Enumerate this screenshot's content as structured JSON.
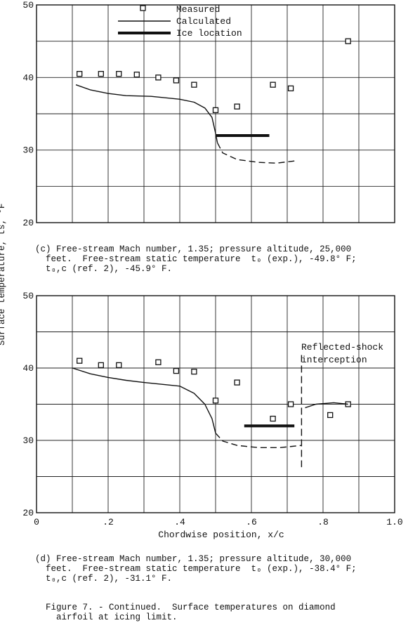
{
  "chart_data": [
    {
      "type": "line",
      "panel": "c",
      "ylabel": "Surface temperature, t",
      "ylabel_sub": "s",
      "ylabel_unit": "°F",
      "xlim": [
        0,
        1.0
      ],
      "ylim": [
        20,
        50
      ],
      "y_ticks": [
        "20",
        "30",
        "40",
        "50"
      ],
      "grid": true,
      "legend": {
        "position": "top-center",
        "entries": [
          "Measured",
          "Calculated",
          "Ice location"
        ]
      },
      "series": [
        {
          "name": "Measured",
          "style": "square-markers",
          "points": [
            [
              0.12,
              40.5
            ],
            [
              0.18,
              40.5
            ],
            [
              0.23,
              40.5
            ],
            [
              0.28,
              40.4
            ],
            [
              0.34,
              40.0
            ],
            [
              0.39,
              39.6
            ],
            [
              0.44,
              39.0
            ],
            [
              0.5,
              35.5
            ],
            [
              0.56,
              36.0
            ],
            [
              0.66,
              39.0
            ],
            [
              0.71,
              38.5
            ],
            [
              0.87,
              45.0
            ]
          ]
        },
        {
          "name": "Calculated",
          "style": "solid",
          "points": [
            [
              0.11,
              39.0
            ],
            [
              0.15,
              38.3
            ],
            [
              0.2,
              37.8
            ],
            [
              0.25,
              37.5
            ],
            [
              0.32,
              37.4
            ],
            [
              0.4,
              37.0
            ],
            [
              0.44,
              36.6
            ],
            [
              0.47,
              35.8
            ],
            [
              0.49,
              34.5
            ],
            [
              0.5,
              32.3
            ],
            [
              0.505,
              31.0
            ]
          ]
        },
        {
          "name": "Calculated (beyond shock)",
          "style": "dashed",
          "points": [
            [
              0.505,
              31.0
            ],
            [
              0.52,
              29.6
            ],
            [
              0.56,
              28.7
            ],
            [
              0.62,
              28.3
            ],
            [
              0.67,
              28.2
            ],
            [
              0.72,
              28.5
            ]
          ]
        },
        {
          "name": "Ice location",
          "style": "thick",
          "points": [
            [
              0.5,
              32.0
            ],
            [
              0.65,
              32.0
            ]
          ]
        }
      ]
    },
    {
      "type": "line",
      "panel": "d",
      "xlabel": "Chordwise position, x/c",
      "xlim": [
        0,
        1.0
      ],
      "ylim": [
        20,
        50
      ],
      "x_ticks": [
        "0",
        ".2",
        ".4",
        ".6",
        ".8",
        "1.0"
      ],
      "y_ticks": [
        "20",
        "30",
        "40",
        "50"
      ],
      "grid": true,
      "annotation": "Reflected-shock\ninterception",
      "shock_x": 0.74,
      "series": [
        {
          "name": "Measured",
          "style": "square-markers",
          "points": [
            [
              0.12,
              41.0
            ],
            [
              0.18,
              40.4
            ],
            [
              0.23,
              40.4
            ],
            [
              0.34,
              40.8
            ],
            [
              0.39,
              39.6
            ],
            [
              0.44,
              39.5
            ],
            [
              0.5,
              35.5
            ],
            [
              0.56,
              38.0
            ],
            [
              0.66,
              33.0
            ],
            [
              0.71,
              35.0
            ],
            [
              0.82,
              33.5
            ],
            [
              0.87,
              35.0
            ]
          ]
        },
        {
          "name": "Calculated",
          "style": "solid",
          "points": [
            [
              0.1,
              40.0
            ],
            [
              0.15,
              39.2
            ],
            [
              0.2,
              38.7
            ],
            [
              0.25,
              38.3
            ],
            [
              0.3,
              38.0
            ],
            [
              0.36,
              37.7
            ],
            [
              0.4,
              37.5
            ],
            [
              0.44,
              36.5
            ],
            [
              0.47,
              35.0
            ],
            [
              0.49,
              33.0
            ],
            [
              0.5,
              31.0
            ]
          ]
        },
        {
          "name": "Calculated (beyond shock)",
          "style": "dashed",
          "points": [
            [
              0.5,
              31.0
            ],
            [
              0.52,
              29.9
            ],
            [
              0.56,
              29.3
            ],
            [
              0.62,
              29.0
            ],
            [
              0.68,
              29.0
            ],
            [
              0.74,
              29.3
            ]
          ]
        },
        {
          "name": "Calculated (after reflected shock)",
          "style": "solid",
          "points": [
            [
              0.75,
              34.5
            ],
            [
              0.78,
              35.0
            ],
            [
              0.83,
              35.2
            ],
            [
              0.87,
              35.0
            ]
          ]
        },
        {
          "name": "Ice location",
          "style": "thick",
          "points": [
            [
              0.58,
              32.0
            ],
            [
              0.72,
              32.0
            ]
          ]
        }
      ]
    }
  ],
  "captions": {
    "c": [
      "(c) Free-stream Mach number, 1.35; pressure altitude, 25,000",
      "  feet.  Free-stream static temperature  t₀ (exp.), -49.8° F;",
      "  t₀,c (ref. 2), -45.9° F."
    ],
    "d": [
      "(d) Free-stream Mach number, 1.35; pressure altitude, 30,000",
      "  feet.  Free-stream static temperature  t₀ (exp.), -38.4° F;",
      "  t₀,c (ref. 2), -31.1° F."
    ],
    "figure": [
      "Figure 7. - Continued.  Surface temperatures on diamond",
      "  airfoil at icing limit."
    ]
  }
}
